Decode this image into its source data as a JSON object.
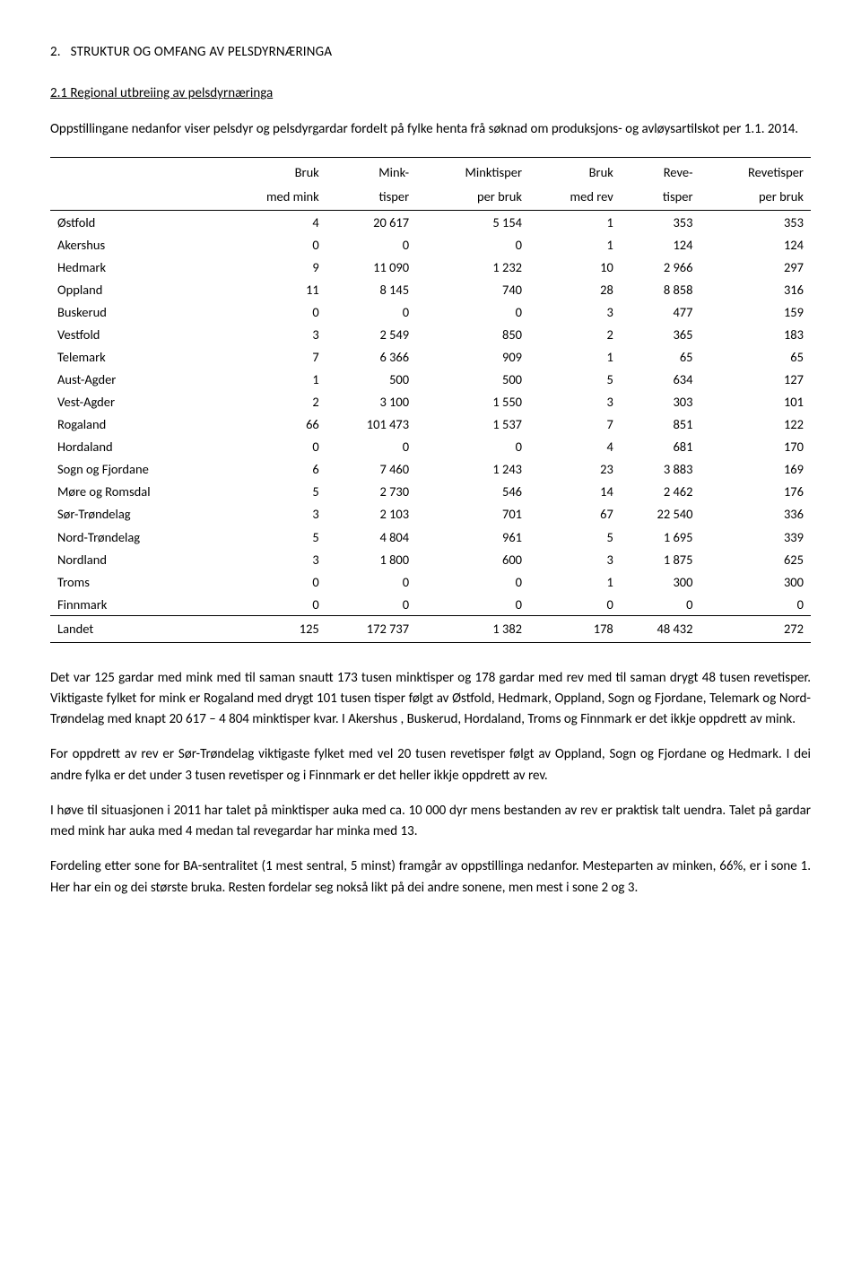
{
  "heading_number": "2.",
  "heading_text": "STRUKTUR OG OMFANG AV PELSDYRNÆRINGA",
  "subheading": "2.1 Regional utbreiing av pelsdyrnæringa",
  "intro": "Oppstillingane nedanfor viser pelsdyr og pelsdyrgardar fordelt på fylke henta frå søknad om produksjons- og avløysartilskot per 1.1. 2014.",
  "table": {
    "header_row1": [
      "",
      "Bruk",
      "Mink-",
      "Minktisper",
      "Bruk",
      "Reve-",
      "Revetisper"
    ],
    "header_row2": [
      "",
      "med mink",
      "tisper",
      "per bruk",
      "med rev",
      "tisper",
      "per bruk"
    ],
    "rows": [
      [
        "Østfold",
        "4",
        "20 617",
        "5 154",
        "1",
        "353",
        "353"
      ],
      [
        "Akershus",
        "0",
        "0",
        "0",
        "1",
        "124",
        "124"
      ],
      [
        "Hedmark",
        "9",
        "11 090",
        "1 232",
        "10",
        "2 966",
        "297"
      ],
      [
        "Oppland",
        "11",
        "8 145",
        "740",
        "28",
        "8 858",
        "316"
      ],
      [
        "Buskerud",
        "0",
        "0",
        "0",
        "3",
        "477",
        "159"
      ],
      [
        "Vestfold",
        "3",
        "2 549",
        "850",
        "2",
        "365",
        "183"
      ],
      [
        "Telemark",
        "7",
        "6 366",
        "909",
        "1",
        "65",
        "65"
      ],
      [
        "Aust-Agder",
        "1",
        "500",
        "500",
        "5",
        "634",
        "127"
      ],
      [
        "Vest-Agder",
        "2",
        "3 100",
        "1 550",
        "3",
        "303",
        "101"
      ],
      [
        "Rogaland",
        "66",
        "101 473",
        "1 537",
        "7",
        "851",
        "122"
      ],
      [
        "Hordaland",
        "0",
        "0",
        "0",
        "4",
        "681",
        "170"
      ],
      [
        "Sogn og Fjordane",
        "6",
        "7 460",
        "1 243",
        "23",
        "3 883",
        "169"
      ],
      [
        "Møre og Romsdal",
        "5",
        "2 730",
        "546",
        "14",
        "2 462",
        "176"
      ],
      [
        "Sør-Trøndelag",
        "3",
        "2 103",
        "701",
        "67",
        "22 540",
        "336"
      ],
      [
        "Nord-Trøndelag",
        "5",
        "4 804",
        "961",
        "5",
        "1 695",
        "339"
      ],
      [
        "Nordland",
        "3",
        "1 800",
        "600",
        "3",
        "1 875",
        "625"
      ],
      [
        "Troms",
        "0",
        "0",
        "0",
        "1",
        "300",
        "300"
      ],
      [
        "Finnmark",
        "0",
        "0",
        "0",
        "0",
        "0",
        "0"
      ]
    ],
    "total": [
      "Landet",
      "125",
      "172 737",
      "1 382",
      "178",
      "48 432",
      "272"
    ]
  },
  "paragraphs": [
    "Det var 125 gardar med mink med til saman snautt 173 tusen minktisper og 178 gardar med rev med til saman drygt 48 tusen revetisper. Viktigaste fylket for mink er Rogaland med drygt 101 tusen tisper følgt av Østfold, Hedmark, Oppland, Sogn og Fjordane, Telemark og Nord-Trøndelag med knapt 20 617 – 4 804  minktisper kvar. I Akershus , Buskerud, Hordaland, Troms og Finnmark er det  ikkje oppdrett av mink.",
    "For oppdrett av rev er Sør-Trøndelag viktigaste fylket med vel 20 tusen revetisper følgt av Oppland, Sogn og Fjordane og Hedmark. I dei andre fylka er det under 3 tusen revetisper og i Finnmark er det heller ikkje oppdrett av rev.",
    "I høve til situasjonen i 2011 har talet på minktisper auka med ca. 10 000 dyr mens bestanden av rev er praktisk talt uendra. Talet på gardar med mink har auka med 4 medan tal revegardar har minka med 13.",
    "Fordeling etter sone for BA-sentralitet (1 mest sentral, 5 minst) framgår av oppstillinga nedanfor. Mesteparten av minken, 66%, er i sone 1. Her har ein og dei største bruka. Resten fordelar seg nokså likt på dei andre sonene, men mest i sone 2 og 3."
  ]
}
